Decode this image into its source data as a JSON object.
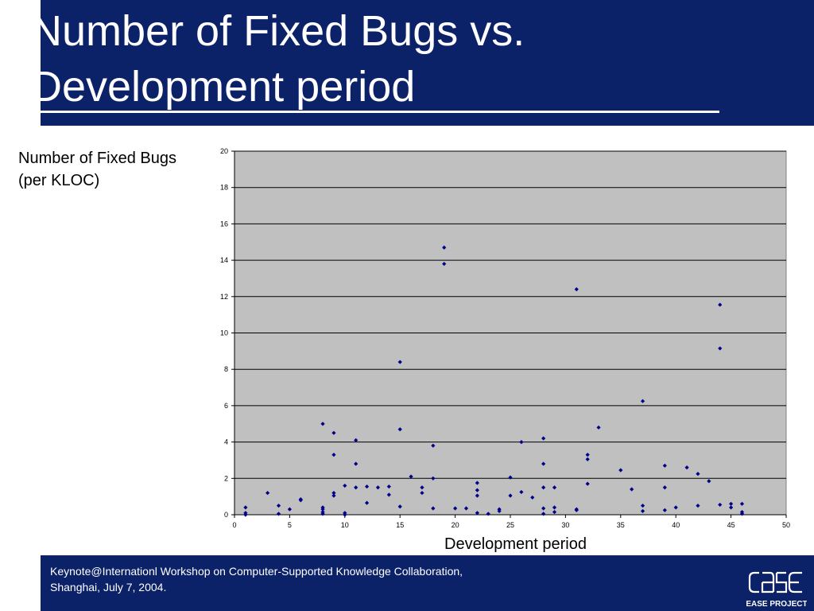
{
  "slide": {
    "title_line1": "Number of Fixed Bugs vs.",
    "title_line2": "Development period"
  },
  "labels": {
    "y_line1": "Number of Fixed Bugs",
    "y_line2": "(per KLOC)",
    "x": "Development period"
  },
  "footer": {
    "line1": "Keynote@Internationl Workshop on Computer-Supported Knowledge Collaboration,",
    "line2": "Shanghai, July 7, 2004.",
    "logo_text": "EASE PROJECT"
  },
  "colors": {
    "header_bg": "#0b2168",
    "plot_bg": "#c0c0c0",
    "marker": "#00008b"
  },
  "chart_data": {
    "type": "scatter",
    "title": "",
    "xlabel": "Development period",
    "ylabel": "Number of Fixed Bugs (per KLOC)",
    "xlim": [
      0,
      50
    ],
    "ylim": [
      0,
      20
    ],
    "xticks": [
      0,
      5,
      10,
      15,
      20,
      25,
      30,
      35,
      40,
      45,
      50
    ],
    "yticks": [
      0,
      2,
      4,
      6,
      8,
      10,
      12,
      14,
      16,
      18,
      20
    ],
    "grid": "horizontal",
    "legend": "none",
    "points": [
      [
        1,
        0.4
      ],
      [
        1,
        0.1
      ],
      [
        1,
        0.0
      ],
      [
        3,
        1.2
      ],
      [
        4,
        0.5
      ],
      [
        4,
        0.05
      ],
      [
        5,
        0.3
      ],
      [
        6,
        0.8
      ],
      [
        6,
        0.85
      ],
      [
        8,
        5.0
      ],
      [
        8,
        0.4
      ],
      [
        8,
        0.3
      ],
      [
        8,
        0.05
      ],
      [
        8,
        0.15
      ],
      [
        9,
        4.5
      ],
      [
        9,
        3.3
      ],
      [
        9,
        1.2
      ],
      [
        9,
        1.05
      ],
      [
        10,
        1.6
      ],
      [
        10,
        0.1
      ],
      [
        10,
        0.0
      ],
      [
        11,
        4.1
      ],
      [
        11,
        2.8
      ],
      [
        11,
        1.5
      ],
      [
        12,
        1.55
      ],
      [
        12,
        0.65
      ],
      [
        13,
        1.5
      ],
      [
        14,
        1.55
      ],
      [
        14,
        1.1
      ],
      [
        15,
        8.4
      ],
      [
        15,
        4.7
      ],
      [
        15,
        0.45
      ],
      [
        16,
        2.1
      ],
      [
        17,
        1.5
      ],
      [
        17,
        1.2
      ],
      [
        18,
        3.8
      ],
      [
        18,
        2.0
      ],
      [
        18,
        0.35
      ],
      [
        19,
        14.7
      ],
      [
        19,
        13.8
      ],
      [
        20,
        0.35
      ],
      [
        21,
        0.35
      ],
      [
        22,
        1.75
      ],
      [
        22,
        1.35
      ],
      [
        22,
        1.05
      ],
      [
        22,
        0.1
      ],
      [
        23,
        0.05
      ],
      [
        24,
        0.3
      ],
      [
        24,
        0.2
      ],
      [
        25,
        2.05
      ],
      [
        25,
        1.05
      ],
      [
        26,
        4.0
      ],
      [
        26,
        1.25
      ],
      [
        27,
        0.95
      ],
      [
        28,
        4.2
      ],
      [
        28,
        2.8
      ],
      [
        28,
        1.5
      ],
      [
        28,
        0.35
      ],
      [
        28,
        0.05
      ],
      [
        29,
        1.5
      ],
      [
        29,
        0.4
      ],
      [
        29,
        0.15
      ],
      [
        31,
        12.4
      ],
      [
        31,
        0.3
      ],
      [
        31,
        0.25
      ],
      [
        32,
        3.3
      ],
      [
        32,
        3.05
      ],
      [
        32,
        1.7
      ],
      [
        33,
        4.8
      ],
      [
        35,
        2.45
      ],
      [
        36,
        1.4
      ],
      [
        37,
        6.25
      ],
      [
        37,
        0.5
      ],
      [
        37,
        0.2
      ],
      [
        39,
        2.7
      ],
      [
        39,
        1.5
      ],
      [
        39,
        0.25
      ],
      [
        40,
        0.4
      ],
      [
        41,
        2.6
      ],
      [
        42,
        2.25
      ],
      [
        42,
        0.5
      ],
      [
        43,
        1.85
      ],
      [
        44,
        11.55
      ],
      [
        44,
        9.15
      ],
      [
        44,
        0.55
      ],
      [
        45,
        0.6
      ],
      [
        45,
        0.4
      ],
      [
        46,
        0.6
      ],
      [
        46,
        0.15
      ],
      [
        46,
        0.05
      ]
    ]
  }
}
